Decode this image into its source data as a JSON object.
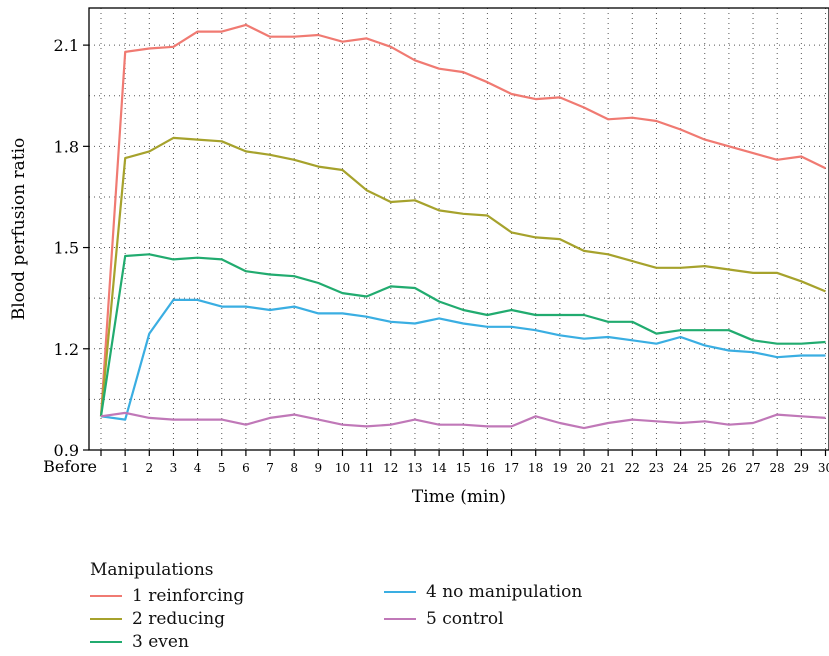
{
  "chart_data": {
    "type": "line",
    "xlabel": "Time (min)",
    "ylabel": "Blood perfusion ratio",
    "x": [
      "Before",
      "1",
      "2",
      "3",
      "4",
      "5",
      "6",
      "7",
      "8",
      "9",
      "10",
      "11",
      "12",
      "13",
      "14",
      "15",
      "16",
      "17",
      "18",
      "19",
      "20",
      "21",
      "22",
      "23",
      "24",
      "25",
      "26",
      "27",
      "28",
      "29",
      "30"
    ],
    "ylim": [
      0.9,
      2.21
    ],
    "yticks": [
      0.9,
      1.2,
      1.5,
      1.8,
      2.1
    ],
    "ytick_labels": [
      "0.9",
      "1.2",
      "1.5",
      "1.8",
      "2.1"
    ],
    "grid": true,
    "legend_title": "Manipulations",
    "legend_position": "bottom",
    "series": [
      {
        "name": "1 reinforcing",
        "color": "#f07a72",
        "values": [
          1.0,
          2.08,
          2.09,
          2.095,
          2.14,
          2.14,
          2.16,
          2.125,
          2.125,
          2.13,
          2.11,
          2.12,
          2.095,
          2.055,
          2.03,
          2.02,
          1.99,
          1.955,
          1.94,
          1.945,
          1.915,
          1.88,
          1.885,
          1.875,
          1.85,
          1.82,
          1.8,
          1.78,
          1.76,
          1.77,
          1.735
        ]
      },
      {
        "name": "2 reducing",
        "color": "#a6a22c",
        "values": [
          1.0,
          1.765,
          1.785,
          1.825,
          1.82,
          1.815,
          1.785,
          1.775,
          1.76,
          1.74,
          1.73,
          1.67,
          1.635,
          1.64,
          1.61,
          1.6,
          1.595,
          1.545,
          1.53,
          1.525,
          1.49,
          1.48,
          1.46,
          1.44,
          1.44,
          1.445,
          1.435,
          1.425,
          1.425,
          1.4,
          1.37
        ]
      },
      {
        "name": "3 even",
        "color": "#21ab6f",
        "values": [
          1.0,
          1.475,
          1.48,
          1.465,
          1.47,
          1.465,
          1.43,
          1.42,
          1.415,
          1.395,
          1.365,
          1.355,
          1.385,
          1.38,
          1.34,
          1.315,
          1.3,
          1.315,
          1.3,
          1.3,
          1.3,
          1.28,
          1.28,
          1.245,
          1.255,
          1.255,
          1.255,
          1.225,
          1.215,
          1.215,
          1.22
        ]
      },
      {
        "name": "4 no manipulation",
        "color": "#3aaee2",
        "values": [
          1.0,
          0.99,
          1.245,
          1.345,
          1.345,
          1.325,
          1.325,
          1.315,
          1.325,
          1.305,
          1.305,
          1.295,
          1.28,
          1.275,
          1.29,
          1.275,
          1.265,
          1.265,
          1.255,
          1.24,
          1.23,
          1.235,
          1.225,
          1.215,
          1.235,
          1.21,
          1.195,
          1.19,
          1.175,
          1.18,
          1.18
        ]
      },
      {
        "name": "5 control",
        "color": "#c078b8",
        "values": [
          1.0,
          1.01,
          0.995,
          0.99,
          0.99,
          0.99,
          0.975,
          0.995,
          1.005,
          0.99,
          0.975,
          0.97,
          0.975,
          0.99,
          0.975,
          0.975,
          0.97,
          0.97,
          1.0,
          0.98,
          0.965,
          0.98,
          0.99,
          0.985,
          0.98,
          0.985,
          0.975,
          0.98,
          1.005,
          1.0,
          0.995
        ]
      }
    ]
  }
}
